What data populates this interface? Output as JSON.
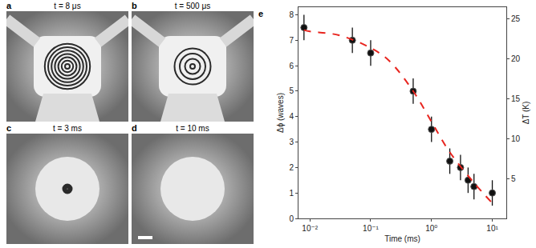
{
  "panels": [
    {
      "label": "a",
      "text": "t = 8 μs"
    },
    {
      "label": "b",
      "text": "t = 500 μs"
    },
    {
      "label": "c",
      "text": "t = 3 ms"
    },
    {
      "label": "d",
      "text": "t = 10 ms"
    }
  ],
  "chart_data": {
    "type": "scatter",
    "label": "e",
    "x_label": "Time (ms)",
    "y_label": "Δϕ (waves)",
    "y2_label": "ΔT (K)",
    "log": "x",
    "xlim": [
      0.0065,
      17
    ],
    "xticks": [
      {
        "value": 0.01,
        "label": "10⁻²"
      },
      {
        "value": 0.1,
        "label": "10⁻¹"
      },
      {
        "value": 1,
        "label": "10⁰"
      },
      {
        "value": 10,
        "label": "10¹"
      }
    ],
    "ylim": [
      0,
      8.3
    ],
    "yticks": [
      0,
      1,
      2,
      3,
      4,
      5,
      6,
      7,
      8
    ],
    "y2lim": [
      0,
      26.5
    ],
    "y2ticks": [
      5,
      10,
      15,
      20,
      25
    ],
    "grid": false,
    "series": [
      {
        "type": "scatter",
        "marker": "circle",
        "color": "#111111",
        "x": [
          0.008,
          0.05,
          0.1,
          0.5,
          1,
          2,
          3,
          4,
          5,
          10
        ],
        "values": [
          7.5,
          7.0,
          6.5,
          5.0,
          3.5,
          2.25,
          2.0,
          1.5,
          1.25,
          1.0
        ],
        "errors": [
          0.5,
          0.5,
          0.5,
          0.5,
          0.5,
          0.5,
          0.5,
          0.5,
          0.5,
          0.5
        ]
      },
      {
        "type": "line",
        "line_style": "dashed",
        "color": "#e8251f",
        "x": [
          0.008,
          0.01,
          0.03,
          0.1,
          0.2,
          0.5,
          1,
          2,
          5,
          10
        ],
        "values": [
          7.4,
          7.35,
          7.2,
          6.7,
          6.2,
          5.0,
          3.8,
          2.6,
          1.4,
          0.6
        ]
      }
    ]
  }
}
